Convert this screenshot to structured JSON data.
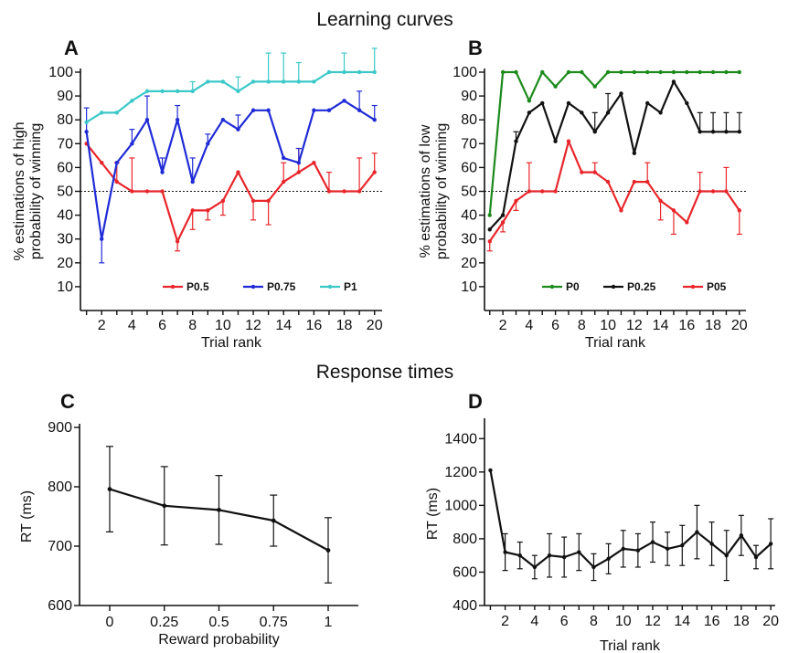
{
  "figure": {
    "section_titles": [
      "Learning curves",
      "Response times"
    ]
  },
  "chart_data": [
    {
      "panel": "A",
      "type": "line",
      "xlabel": "Trial rank",
      "ylabel": "% estimations of high probability of winning",
      "ylabel_lines": [
        "% estimations of high",
        "probability of winning"
      ],
      "xlim": [
        0.6,
        20.5
      ],
      "ylim": [
        0,
        100
      ],
      "xticks": [
        2,
        4,
        6,
        8,
        10,
        12,
        14,
        16,
        18,
        20
      ],
      "yticks": [
        10,
        20,
        30,
        40,
        50,
        60,
        70,
        80,
        90,
        100
      ],
      "reference_line": 50,
      "legend": "bottom",
      "grid": false,
      "x": [
        1,
        2,
        3,
        4,
        5,
        6,
        7,
        8,
        9,
        10,
        11,
        12,
        13,
        14,
        15,
        16,
        17,
        18,
        19,
        20
      ],
      "series": [
        {
          "name": "P0.5",
          "color": "#e8262b",
          "values": [
            70,
            62,
            54,
            50,
            50,
            50,
            29,
            42,
            42,
            46,
            58,
            46,
            46,
            54,
            58,
            62,
            50,
            50,
            50,
            58
          ],
          "err": [
            0,
            0,
            8,
            14,
            0,
            0,
            4,
            8,
            4,
            6,
            0,
            8,
            10,
            8,
            10,
            0,
            8,
            0,
            14,
            8
          ]
        },
        {
          "name": "P0.75",
          "color": "#1f2bd6",
          "values": [
            75,
            30,
            62,
            70,
            80,
            58,
            80,
            54,
            70,
            80,
            76,
            84,
            84,
            64,
            62,
            84,
            84,
            88,
            84,
            80
          ],
          "err": [
            10,
            10,
            0,
            6,
            10,
            6,
            6,
            10,
            4,
            0,
            6,
            0,
            0,
            0,
            6,
            0,
            0,
            0,
            8,
            6
          ]
        },
        {
          "name": "P1",
          "color": "#3cc8c8",
          "values": [
            79,
            83,
            83,
            88,
            92,
            92,
            92,
            92,
            96,
            96,
            92,
            96,
            96,
            96,
            96,
            96,
            100,
            100,
            100,
            100
          ],
          "err": [
            0,
            0,
            0,
            0,
            0,
            0,
            0,
            4,
            0,
            0,
            6,
            0,
            12,
            12,
            8,
            0,
            0,
            8,
            0,
            10
          ]
        }
      ]
    },
    {
      "panel": "B",
      "type": "line",
      "xlabel": "Trial rank",
      "ylabel": "% estimations of low probability of winning",
      "ylabel_lines": [
        "% estimations of low",
        "probability of winning"
      ],
      "xlim": [
        0.6,
        20.5
      ],
      "ylim": [
        0,
        100
      ],
      "xticks": [
        2,
        4,
        6,
        8,
        10,
        12,
        14,
        16,
        18,
        20
      ],
      "yticks": [
        10,
        20,
        30,
        40,
        50,
        60,
        70,
        80,
        90,
        100
      ],
      "reference_line": 50,
      "legend": "bottom",
      "grid": false,
      "x": [
        1,
        2,
        3,
        4,
        5,
        6,
        7,
        8,
        9,
        10,
        11,
        12,
        13,
        14,
        15,
        16,
        17,
        18,
        19,
        20
      ],
      "series": [
        {
          "name": "P0",
          "color": "#1c8a1c",
          "values": [
            40,
            100,
            100,
            88,
            100,
            94,
            100,
            100,
            94,
            100,
            100,
            100,
            100,
            100,
            100,
            100,
            100,
            100,
            100,
            100
          ],
          "err": [
            0,
            0,
            0,
            0,
            0,
            0,
            0,
            0,
            0,
            0,
            0,
            0,
            0,
            0,
            0,
            0,
            0,
            0,
            0,
            0
          ]
        },
        {
          "name": "P0.25",
          "color": "#111111",
          "values": [
            34,
            40,
            71,
            83,
            87,
            71,
            87,
            83,
            75,
            83,
            91,
            66,
            87,
            83,
            96,
            87,
            75,
            75,
            75,
            75
          ],
          "err": [
            0,
            0,
            4,
            0,
            0,
            0,
            0,
            0,
            8,
            8,
            0,
            0,
            0,
            0,
            0,
            0,
            8,
            8,
            8,
            8
          ]
        },
        {
          "name": "P05",
          "color": "#e8262b",
          "values": [
            29,
            37,
            46,
            50,
            50,
            50,
            71,
            58,
            58,
            54,
            42,
            54,
            54,
            46,
            42,
            37,
            50,
            50,
            50,
            42
          ],
          "err": [
            4,
            4,
            4,
            12,
            0,
            0,
            0,
            0,
            4,
            0,
            0,
            0,
            8,
            8,
            10,
            0,
            8,
            0,
            10,
            10
          ]
        }
      ]
    },
    {
      "panel": "C",
      "type": "line",
      "xlabel": "Reward probability",
      "ylabel": "RT (ms)",
      "categories": [
        "0",
        "0.25",
        "0.5",
        "0.75",
        "1"
      ],
      "ylim": [
        600,
        900
      ],
      "yticks": [
        600,
        700,
        800,
        900
      ],
      "grid": false,
      "series": [
        {
          "color": "#111111",
          "values": [
            796,
            768,
            761,
            743,
            693
          ],
          "err": [
            72,
            66,
            58,
            43,
            55
          ]
        }
      ]
    },
    {
      "panel": "D",
      "type": "line",
      "xlabel": "Trial rank",
      "ylabel": "RT (ms)",
      "xlim": [
        0.6,
        20.3
      ],
      "ylim": [
        400,
        1500
      ],
      "xticks": [
        2,
        4,
        6,
        8,
        10,
        12,
        14,
        16,
        18,
        20
      ],
      "yticks": [
        400,
        600,
        800,
        1000,
        1200,
        1400
      ],
      "grid": false,
      "x": [
        1,
        2,
        3,
        4,
        5,
        6,
        7,
        8,
        9,
        10,
        11,
        12,
        13,
        14,
        15,
        16,
        17,
        18,
        19,
        20
      ],
      "series": [
        {
          "color": "#111111",
          "values": [
            1210,
            720,
            700,
            630,
            700,
            690,
            720,
            630,
            680,
            740,
            730,
            780,
            740,
            760,
            840,
            770,
            700,
            820,
            690,
            770
          ],
          "err": [
            0,
            110,
            80,
            70,
            130,
            120,
            110,
            80,
            90,
            110,
            100,
            120,
            100,
            120,
            160,
            130,
            150,
            120,
            70,
            150
          ]
        }
      ]
    }
  ]
}
